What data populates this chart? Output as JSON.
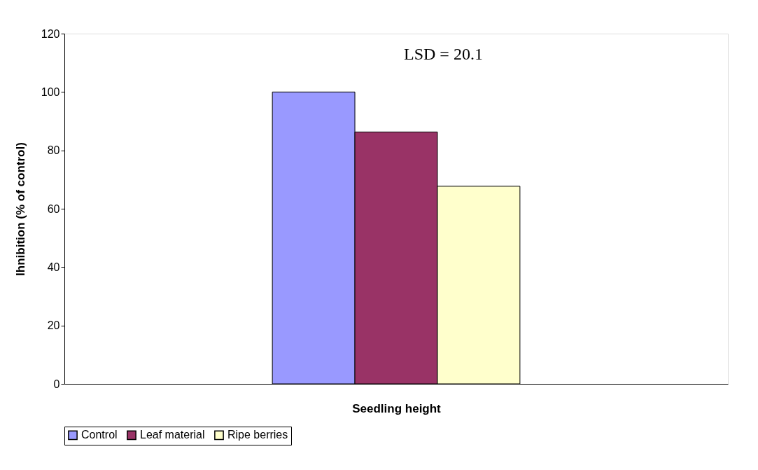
{
  "chart_data": {
    "type": "bar",
    "xlabel": "Seedling height",
    "ylabel": "Ihnibition (% of control)",
    "categories": [
      null
    ],
    "series": [
      {
        "name": "Control",
        "color": "#9999ff",
        "values": [
          100
        ]
      },
      {
        "name": "Leaf material",
        "color": "#993366",
        "values": [
          86.3
        ]
      },
      {
        "name": "Ripe berries",
        "color": "#ffffcc",
        "values": [
          67.7
        ]
      }
    ],
    "ylim": [
      0,
      120
    ],
    "yticks": [
      0,
      20,
      40,
      60,
      80,
      100,
      120
    ],
    "annotations": [
      "LSD = 20.1"
    ],
    "legend": "bottom",
    "grid": false
  }
}
